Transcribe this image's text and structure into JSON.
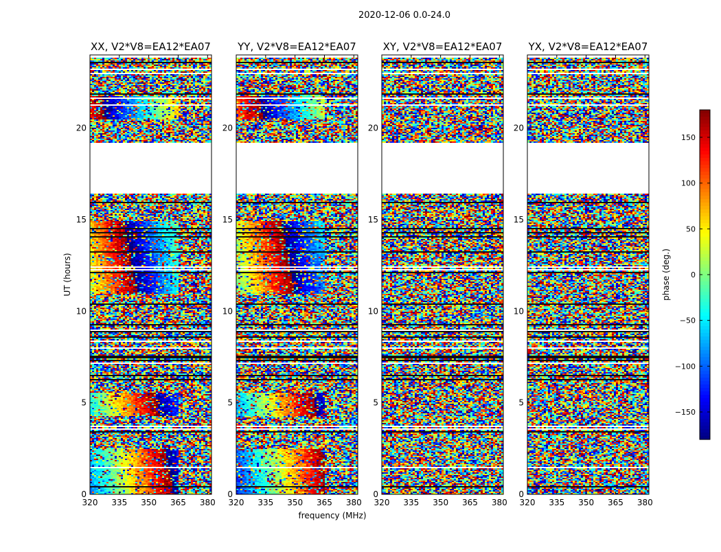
{
  "suptitle": "2020-12-06 0.0-24.0",
  "chart_data": {
    "type": "heatmap",
    "title": "2020-12-06 0.0-24.0",
    "xlabel": "frequency (MHz)",
    "ylabel": "UT (hours)",
    "xlim": [
      320,
      382
    ],
    "ylim": [
      0,
      24
    ],
    "xticks": [
      320,
      335,
      350,
      365,
      380
    ],
    "yticks": [
      0,
      5,
      10,
      15,
      20
    ],
    "panels": [
      {
        "title": "XX, V2*V8=EA12*EA07",
        "pol": "XX",
        "coherent": true
      },
      {
        "title": "YY, V2*V8=EA12*EA07",
        "pol": "YY",
        "coherent": true
      },
      {
        "title": "XY, V2*V8=EA12*EA07",
        "pol": "XY",
        "coherent": false
      },
      {
        "title": "YX, V2*V8=EA12*EA07",
        "pol": "YX",
        "coherent": false
      }
    ],
    "flagged_ut_ranges": [
      [
        16.5,
        19.2
      ]
    ],
    "colorbar": {
      "label": "phase (deg.)",
      "range": [
        -180,
        180
      ],
      "ticks": [
        150,
        100,
        50,
        0,
        -50,
        -100,
        -150
      ],
      "tick_labels": [
        "150",
        "100",
        "50",
        "0",
        "−50",
        "−100",
        "−150"
      ],
      "colormap": "jet"
    }
  }
}
